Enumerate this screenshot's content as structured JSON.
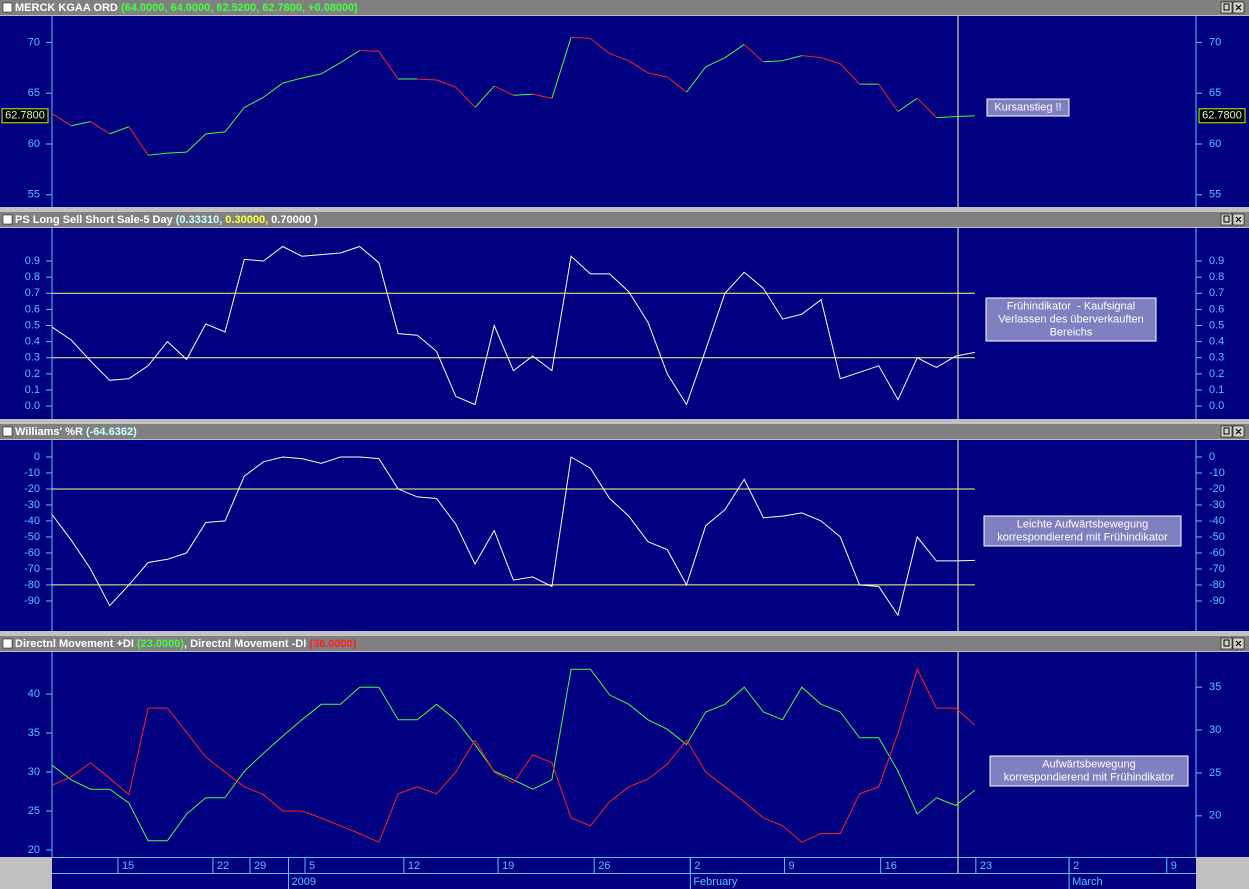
{
  "x_axis": {
    "xlim": [
      0,
      59.5
    ],
    "xticks": [
      {
        "value": 3.43,
        "label": "15"
      },
      {
        "value": 8.37,
        "label": "22"
      },
      {
        "value": 10.3,
        "label": "29"
      },
      {
        "value": 13.16,
        "label": "5"
      },
      {
        "value": 18.3,
        "label": "12"
      },
      {
        "value": 23.2,
        "label": "19"
      },
      {
        "value": 28.2,
        "label": "26"
      },
      {
        "value": 33.2,
        "label": "2"
      },
      {
        "value": 38.1,
        "label": "9"
      },
      {
        "value": 43.1,
        "label": "16"
      },
      {
        "value": 48.05,
        "label": "23"
      },
      {
        "value": 52.9,
        "label": "2"
      },
      {
        "value": 57.98,
        "label": "9"
      }
    ],
    "month_labels": [
      {
        "value": 12.3,
        "label": "2009"
      },
      {
        "value": 33.2,
        "label": "February"
      },
      {
        "value": 52.9,
        "label": "March"
      }
    ]
  },
  "chart_data": [
    {
      "type": "updown_line",
      "title_parts": [
        "MERCK KGAA ORD ",
        "(64.0000, 64.0000, 62.5200, 62.7800, +0.08000)"
      ],
      "title_colors": [
        "#ffffff",
        "#40ff40"
      ],
      "ylim": [
        53.8,
        72.6
      ],
      "yticks": [
        55,
        60,
        65,
        70
      ],
      "series": [
        {
          "up_color": "#40ff40",
          "down_color": "#ff2020",
          "values": [
            63.0,
            61.8,
            62.2,
            61.0,
            61.7,
            58.9,
            59.1,
            59.2,
            61.0,
            61.2,
            63.6,
            64.6,
            66.0,
            66.5,
            66.9,
            68.0,
            69.2,
            69.1,
            66.4,
            66.4,
            66.3,
            65.6,
            63.6,
            65.7,
            64.8,
            64.9,
            64.5,
            70.5,
            70.4,
            68.9,
            68.2,
            67.0,
            66.6,
            65.1,
            67.6,
            68.5,
            69.8,
            68.1,
            68.2,
            68.7,
            68.5,
            67.9,
            65.9,
            65.9,
            63.2,
            64.5,
            62.6,
            62.7,
            62.78
          ]
        }
      ],
      "last_value_label": "62.7800",
      "annotation": [
        "Kursanstieg !!"
      ]
    },
    {
      "type": "line",
      "title_parts": [
        "PS Long Sell Short Sale-5 Day ",
        "(0.33310,",
        " 0.30000,",
        " 0.70000 )"
      ],
      "title_colors": [
        "#ffffff",
        "#c8ffff",
        "#ffff40",
        "#ffffff"
      ],
      "ylim": [
        -0.08,
        1.105
      ],
      "yticks": [
        {
          "value": 0,
          "label": "0.0"
        },
        0.1,
        0.2,
        0.3,
        0.4,
        0.5,
        0.6,
        0.7,
        0.8,
        0.9
      ],
      "levels": [
        0.7,
        0.3
      ],
      "level_color": "#ffff80",
      "series": [
        {
          "color": "#ffffff",
          "values": [
            0.49,
            0.41,
            0.28,
            0.16,
            0.17,
            0.25,
            0.4,
            0.29,
            0.51,
            0.46,
            0.91,
            0.9,
            0.99,
            0.93,
            0.94,
            0.95,
            0.99,
            0.89,
            0.45,
            0.44,
            0.34,
            0.06,
            0.01,
            0.5,
            0.22,
            0.31,
            0.22,
            0.93,
            0.82,
            0.82,
            0.71,
            0.52,
            0.2,
            0.01,
            0.35,
            0.7,
            0.83,
            0.73,
            0.54,
            0.57,
            0.66,
            0.17,
            0.21,
            0.25,
            0.04,
            0.3,
            0.24,
            0.31,
            0.3331
          ]
        }
      ],
      "annotation": [
        "Frühindikator  - Kaufsignal",
        "Verlassen des überverkauften",
        "Bereichs"
      ]
    },
    {
      "type": "line",
      "title_parts": [
        "Williams' %R ",
        "(-64.6362)"
      ],
      "title_colors": [
        "#ffffff",
        "#c8ffff"
      ],
      "ylim": [
        -108.8,
        10.6
      ],
      "yticks": [
        0,
        -10,
        -20,
        -30,
        -40,
        -50,
        -60,
        -70,
        -80,
        -90
      ],
      "levels": [
        -20,
        -80
      ],
      "level_color": "#ffff80",
      "series": [
        {
          "color": "#ffffff",
          "values": [
            -36,
            -52,
            -70,
            -93,
            -80,
            -66,
            -64,
            -60,
            -41,
            -40,
            -12,
            -3,
            0,
            -1,
            -4,
            0,
            0,
            -1,
            -20,
            -25,
            -26,
            -42,
            -67,
            -46,
            -77,
            -75,
            -81,
            0,
            -7,
            -26,
            -37,
            -53,
            -58,
            -80,
            -43,
            -33,
            -14,
            -38,
            -37,
            -35,
            -40,
            -50,
            -80,
            -81,
            -99,
            -50,
            -65,
            -65,
            -64.6362
          ]
        }
      ],
      "annotation": [
        "Leichte Aufwärtsbewegung",
        "korrespondierend mit Frühindikator"
      ]
    },
    {
      "type": "line",
      "title_parts": [
        "Directnl Movement +DI ",
        "(23.0000)",
        ", Directnl Movement -DI ",
        "(36.0000)"
      ],
      "title_colors": [
        "#ffffff",
        "#40ff40",
        "#ffffff",
        "#ff2020"
      ],
      "ylim": [
        19.1,
        45.4
      ],
      "yticks": [
        20,
        25,
        30,
        35,
        40
      ],
      "y2lim": [
        15.2,
        39.1
      ],
      "y2ticks": [
        20,
        25,
        30,
        35
      ],
      "series": [
        {
          "color": "#40ff40",
          "axis": "y2",
          "values": [
            25.9,
            24.2,
            23.1,
            23.1,
            21.5,
            17.1,
            17.1,
            20.2,
            22.1,
            22.1,
            25.2,
            27.3,
            29.3,
            31.2,
            33.0,
            33.0,
            35.0,
            35.0,
            31.2,
            31.2,
            33.0,
            31.2,
            28.3,
            25.2,
            24.2,
            23.1,
            24.2,
            37.1,
            37.1,
            34.1,
            33.0,
            31.2,
            30.1,
            28.3,
            32.1,
            33.0,
            35.0,
            32.1,
            31.2,
            35.0,
            33.0,
            32.1,
            29.1,
            29.1,
            25.2,
            20.2,
            22.1,
            21.2,
            23.0
          ]
        },
        {
          "color": "#ff2020",
          "values": [
            28.3,
            29.4,
            31.2,
            29.2,
            27.1,
            38.2,
            38.2,
            35.1,
            31.9,
            30.0,
            28.1,
            27.1,
            25.0,
            25.0,
            24.1,
            23.1,
            22.1,
            21.0,
            27.2,
            28.1,
            27.2,
            30.0,
            34.1,
            30.0,
            28.6,
            32.2,
            31.2,
            24.1,
            23.1,
            26.2,
            28.1,
            29.1,
            31.0,
            34.1,
            30.0,
            28.1,
            26.2,
            24.1,
            23.1,
            21.0,
            22.1,
            22.1,
            27.2,
            28.1,
            35.0,
            43.2,
            38.2,
            38.2,
            36.0
          ]
        }
      ],
      "annotation": [
        "Aufwärtsbewegung",
        "korrespondierend mit Frühindikator"
      ]
    }
  ]
}
